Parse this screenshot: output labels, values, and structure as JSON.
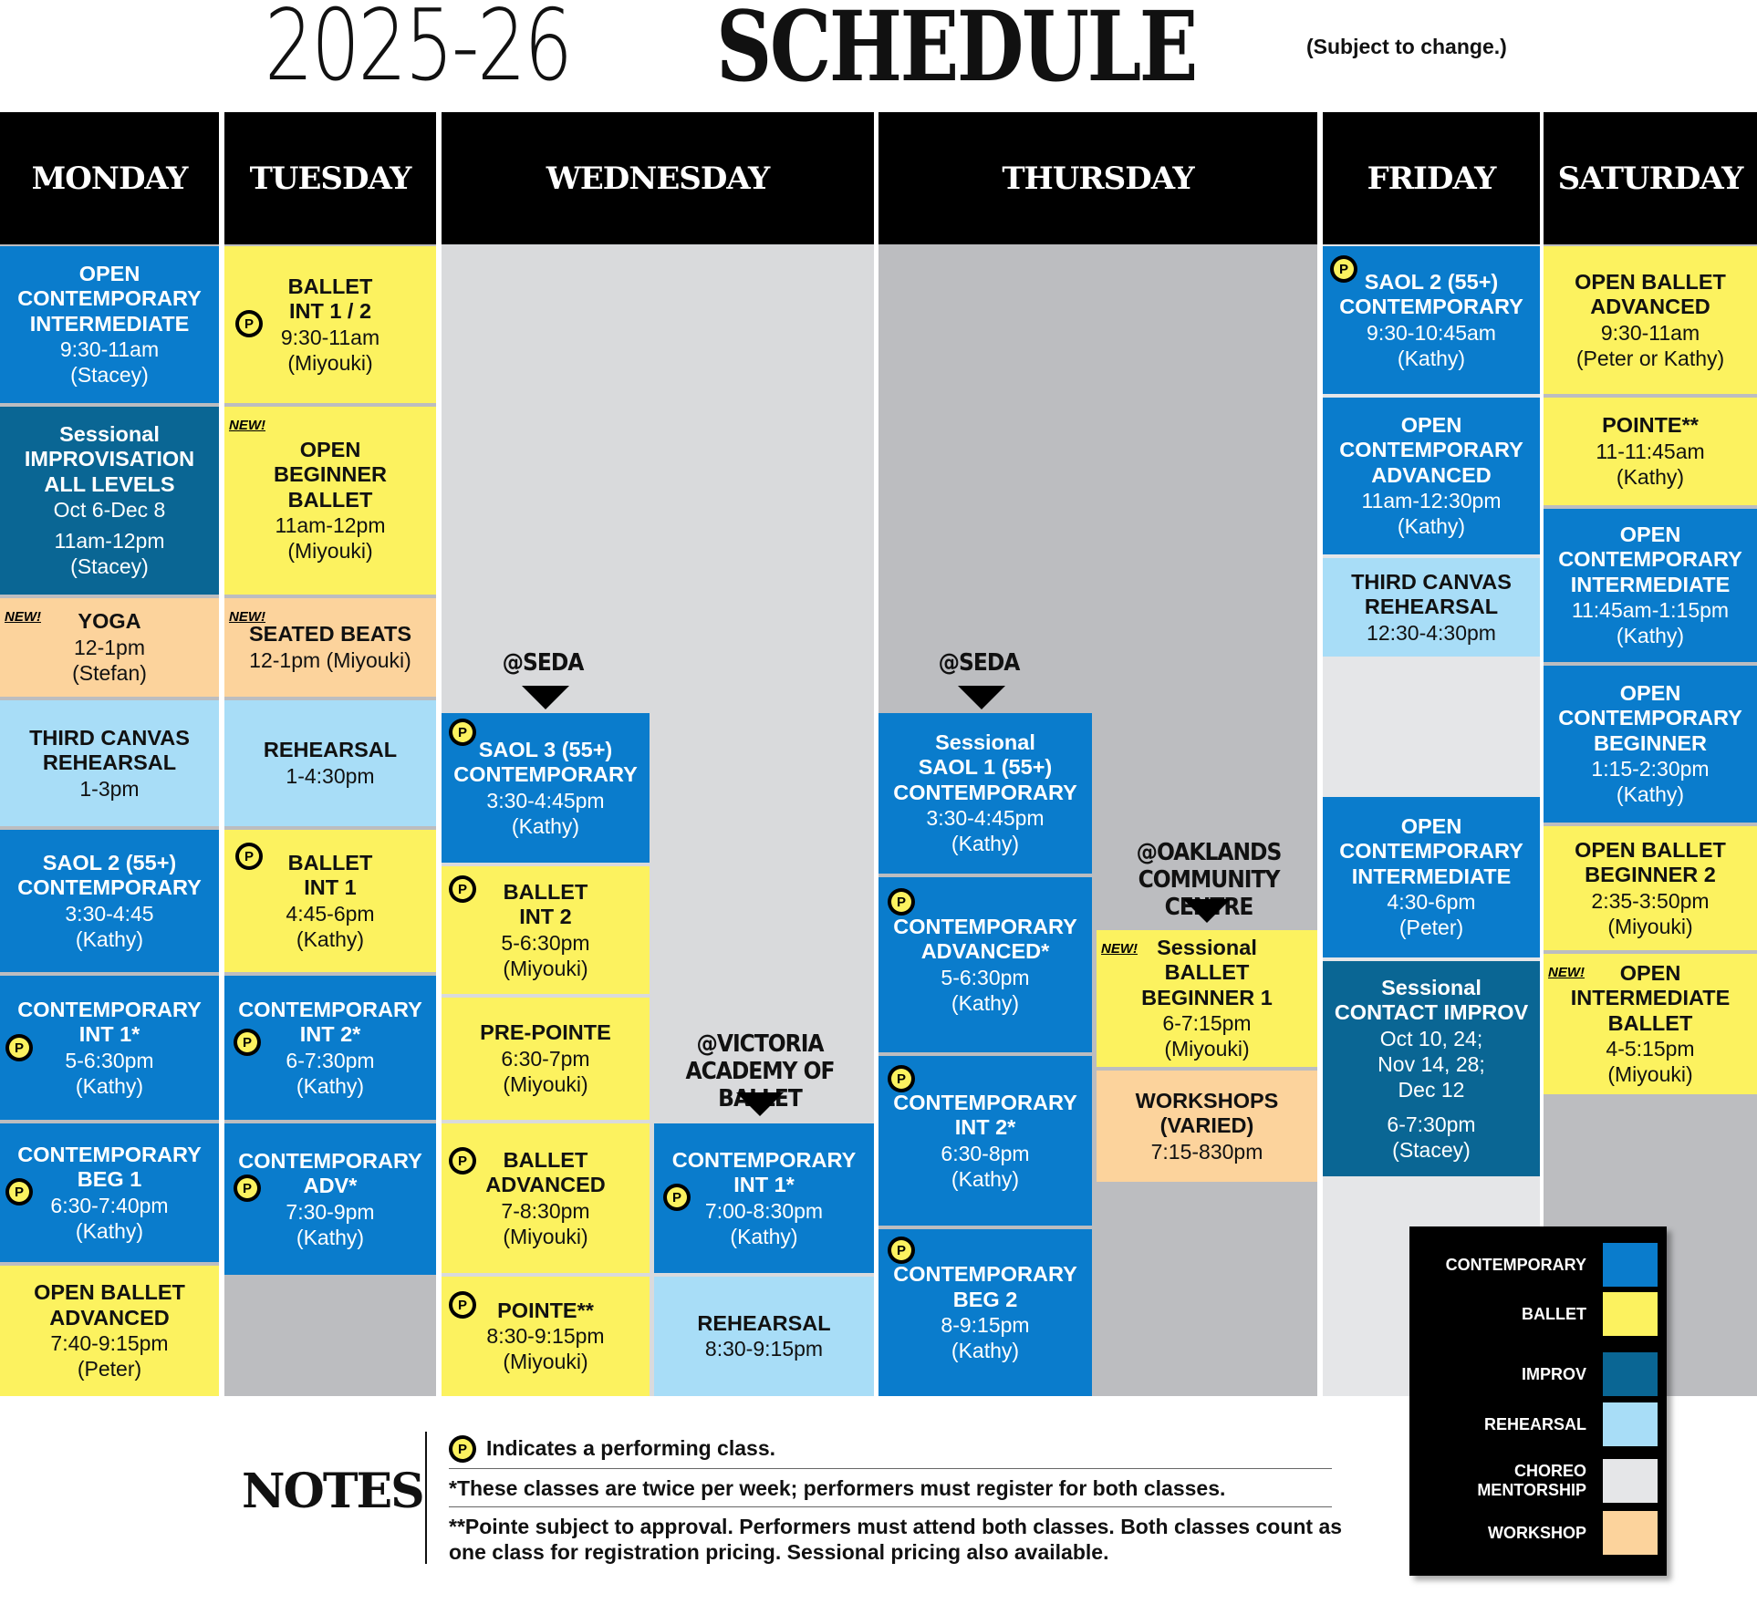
{
  "title": {
    "year": "2025-26",
    "word": "SCHEDULE",
    "note": "(Subject to change.)"
  },
  "days": [
    "MONDAY",
    "TUESDAY",
    "WEDNESDAY",
    "THURSDAY",
    "FRIDAY",
    "SATURDAY"
  ],
  "badge": "P",
  "new_label": "NEW!",
  "colors": {
    "contemporary": "#0a7ccc",
    "ballet": "#fcf25f",
    "improv": "#0a6694",
    "rehearsal": "#a8ddf7",
    "choreo": "#e5e6e8",
    "workshop": "#fcd39c",
    "empty": "#bcbdc0"
  },
  "monday": [
    {
      "name": "OPEN\nCONTEMPORARY\nINTERMEDIATE",
      "time": "9:30-11am\n(Stacey)"
    },
    {
      "name": "Sessional\nIMPROVISATION\nALL LEVELS",
      "dates": "Oct 6-Dec 8",
      "time": "11am-12pm\n(Stacey)"
    },
    {
      "name": "YOGA",
      "time": "12-1pm\n(Stefan)"
    },
    {
      "name": "THIRD CANVAS\nREHEARSAL",
      "time": "1-3pm"
    },
    {
      "name": "SAOL 2 (55+)\nCONTEMPORARY",
      "time": "3:30-4:45\n(Kathy)"
    },
    {
      "name": "CONTEMPORARY\nINT 1*",
      "time": "5-6:30pm\n(Kathy)"
    },
    {
      "name": "CONTEMPORARY\nBEG 1",
      "time": "6:30-7:40pm\n(Kathy)"
    },
    {
      "name": "OPEN BALLET\nADVANCED",
      "time": "7:40-9:15pm\n(Peter)"
    }
  ],
  "tuesday": [
    {
      "name": "BALLET\nINT 1 / 2",
      "time": "9:30-11am\n(Miyouki)"
    },
    {
      "name": "OPEN\nBEGINNER\nBALLET",
      "time": "11am-12pm\n(Miyouki)"
    },
    {
      "name": "SEATED BEATS",
      "time": "12-1pm (Miyouki)"
    },
    {
      "name": "REHEARSAL",
      "time": "1-4:30pm"
    },
    {
      "name": "BALLET\nINT 1",
      "time": "4:45-6pm\n(Kathy)"
    },
    {
      "name": "CONTEMPORARY\nINT 2*",
      "time": "6-7:30pm\n(Kathy)"
    },
    {
      "name": "CONTEMPORARY\nADV*",
      "time": "7:30-9pm\n(Kathy)"
    }
  ],
  "wednesday": {
    "loc1": "@SEDA",
    "loc2": "@VICTORIA\nACADEMY OF BALLET",
    "a": [
      {
        "name": "SAOL 3 (55+)\nCONTEMPORARY",
        "time": "3:30-4:45pm\n(Kathy)"
      },
      {
        "name": "BALLET\nINT 2",
        "time": "5-6:30pm\n(Miyouki)"
      },
      {
        "name": "PRE-POINTE",
        "time": "6:30-7pm\n(Miyouki)"
      },
      {
        "name": "BALLET\nADVANCED",
        "time": "7-8:30pm\n(Miyouki)"
      },
      {
        "name": "POINTE**",
        "time": "8:30-9:15pm\n(Miyouki)"
      }
    ],
    "b": [
      {
        "name": "CONTEMPORARY\nINT 1*",
        "time": "7:00-8:30pm\n(Kathy)"
      },
      {
        "name": "REHEARSAL",
        "time": "8:30-9:15pm"
      }
    ]
  },
  "thursday": {
    "loc1": "@SEDA",
    "loc2": "@OAKLANDS\nCOMMUNITY CENTRE",
    "a": [
      {
        "name": "Sessional\nSAOL 1 (55+)\nCONTEMPORARY",
        "time": "3:30-4:45pm\n(Kathy)"
      },
      {
        "name": "CONTEMPORARY\nADVANCED*",
        "time": "5-6:30pm\n(Kathy)"
      },
      {
        "name": "CONTEMPORARY\nINT 2*",
        "time": "6:30-8pm\n(Kathy)"
      },
      {
        "name": "CONTEMPORARY\nBEG 2",
        "time": "8-9:15pm\n(Kathy)"
      }
    ],
    "b": [
      {
        "name": "Sessional\nBALLET\nBEGINNER 1",
        "time": "6-7:15pm\n(Miyouki)"
      },
      {
        "name": "WORKSHOPS\n(VARIED)",
        "time": "7:15-830pm"
      }
    ]
  },
  "friday": [
    {
      "name": "SAOL 2 (55+)\nCONTEMPORARY",
      "time": "9:30-10:45am\n(Kathy)"
    },
    {
      "name": "OPEN\nCONTEMPORARY\nADVANCED",
      "time": "11am-12:30pm\n(Kathy)"
    },
    {
      "name": "THIRD CANVAS\nREHEARSAL",
      "time": "12:30-4:30pm"
    },
    {
      "name": "OPEN\nCONTEMPORARY\nINTERMEDIATE",
      "time": "4:30-6pm\n(Peter)"
    },
    {
      "name": "Sessional\nCONTACT IMPROV",
      "dates": "Oct 10, 24;\nNov 14, 28;\nDec 12",
      "time": "6-7:30pm\n(Stacey)"
    }
  ],
  "saturday": [
    {
      "name": "OPEN BALLET\nADVANCED",
      "time": "9:30-11am\n(Peter or Kathy)"
    },
    {
      "name": "POINTE**",
      "time": "11-11:45am\n(Kathy)"
    },
    {
      "name": "OPEN\nCONTEMPORARY\nINTERMEDIATE",
      "time": "11:45am-1:15pm\n(Kathy)"
    },
    {
      "name": "OPEN\nCONTEMPORARY\nBEGINNER",
      "time": "1:15-2:30pm\n(Kathy)"
    },
    {
      "name": "OPEN BALLET\nBEGINNER 2",
      "time": "2:35-3:50pm\n(Miyouki)"
    },
    {
      "name": "OPEN\nINTERMEDIATE\nBALLET",
      "time": "4-5:15pm\n(Miyouki)"
    }
  ],
  "notes": {
    "heading": "NOTES",
    "n1": "Indicates a performing class.",
    "n2": "*These classes are twice per week; performers must register for both classes.",
    "n3": "**Pointe subject to approval. Performers must attend both classes. Both classes count as one class for registration pricing. Sessional pricing also available."
  },
  "legend": [
    "CONTEMPORARY",
    "BALLET",
    "IMPROV",
    "REHEARSAL",
    "CHOREO\nMENTORSHIP",
    "WORKSHOP"
  ]
}
